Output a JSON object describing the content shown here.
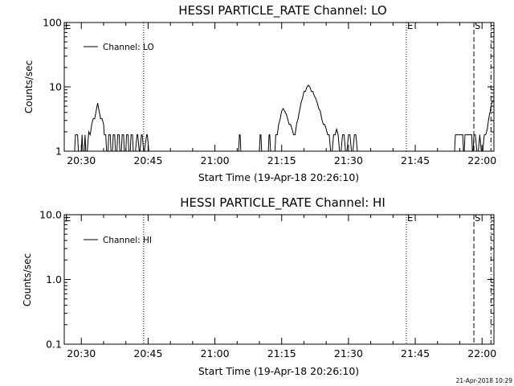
{
  "footer_stamp": "21-Apr-2018 10:29",
  "chart_data": [
    {
      "type": "line",
      "title": "HESSI PARTICLE_RATE Channel: LO",
      "xlabel": "Start Time (19-Apr-18 20:26:10)",
      "ylabel": "Counts/sec",
      "yscale": "log",
      "xlim": [
        "20:26:10",
        "22:02:40"
      ],
      "ylim": [
        1,
        100
      ],
      "x_ticks": [
        "20:30",
        "20:45",
        "21:00",
        "21:15",
        "21:30",
        "21:45",
        "22:00"
      ],
      "y_ticks": [
        "1",
        "10",
        "100"
      ],
      "legend": {
        "label": "Channel: LO",
        "placement": "top-left"
      },
      "markers": [
        {
          "time": "20:26:10",
          "label": "E",
          "style": "none"
        },
        {
          "time": "20:44:00",
          "label": "",
          "style": "dotted"
        },
        {
          "time": "21:43:00",
          "label": "E",
          "style": "dotted"
        },
        {
          "time": "21:58:10",
          "label": "S",
          "style": "dashed"
        },
        {
          "time": "22:02:00",
          "label": "",
          "style": "dash-dot"
        }
      ],
      "series": [
        {
          "name": "Channel: LO",
          "x": [
            "20:28:30",
            "20:28:40",
            "20:29:10",
            "20:29:20",
            "20:30:00",
            "20:30:10",
            "20:30:20",
            "20:30:40",
            "20:30:50",
            "20:31:00",
            "20:31:20",
            "20:31:40",
            "20:32:00",
            "20:32:20",
            "20:32:40",
            "20:33:00",
            "20:33:20",
            "20:33:40",
            "20:34:00",
            "20:34:20",
            "20:34:40",
            "20:35:00",
            "20:35:10",
            "20:35:30",
            "20:35:40",
            "20:36:00",
            "20:36:10",
            "20:36:30",
            "20:36:40",
            "20:37:00",
            "20:37:10",
            "20:37:30",
            "20:37:40",
            "20:38:00",
            "20:38:10",
            "20:38:30",
            "20:38:40",
            "20:39:00",
            "20:39:10",
            "20:39:30",
            "20:39:40",
            "20:40:00",
            "20:40:10",
            "20:40:30",
            "20:40:40",
            "20:41:00",
            "20:41:10",
            "20:41:30",
            "20:41:40",
            "20:42:10",
            "20:42:30",
            "20:42:40",
            "20:43:00",
            "20:43:10",
            "20:43:30",
            "20:43:40",
            "20:44:00",
            "20:44:10",
            "20:44:40",
            "20:44:50",
            "20:45:10",
            "20:45:20",
            "20:46:20",
            "21:05:20",
            "21:05:30",
            "21:05:40",
            "21:05:50",
            "21:10:00",
            "21:10:10",
            "21:10:20",
            "21:10:30",
            "21:12:00",
            "21:12:10",
            "21:12:20",
            "21:12:30",
            "21:13:30",
            "21:13:40",
            "21:14:00",
            "21:14:20",
            "21:14:40",
            "21:15:00",
            "21:15:20",
            "21:15:40",
            "21:16:00",
            "21:16:20",
            "21:16:40",
            "21:17:00",
            "21:17:20",
            "21:17:40",
            "21:18:00",
            "21:18:20",
            "21:18:40",
            "21:19:00",
            "21:19:20",
            "21:19:40",
            "21:20:00",
            "21:20:20",
            "21:20:40",
            "21:21:00",
            "21:21:20",
            "21:21:40",
            "21:22:00",
            "21:22:20",
            "21:22:40",
            "21:23:00",
            "21:23:20",
            "21:23:40",
            "21:24:00",
            "21:24:20",
            "21:24:40",
            "21:25:00",
            "21:25:20",
            "21:25:40",
            "21:26:00",
            "21:26:20",
            "21:26:40",
            "21:27:00",
            "21:27:20",
            "21:27:40",
            "21:28:00",
            "21:28:20",
            "21:28:40",
            "21:29:00",
            "21:29:20",
            "21:29:40",
            "21:30:00",
            "21:30:20",
            "21:30:40",
            "21:31:00",
            "21:31:20",
            "21:31:40",
            "21:32:00",
            "21:32:20",
            "21:32:40",
            "21:33:00",
            "21:33:20",
            "21:33:40",
            "21:34:00",
            "21:34:20",
            "21:34:40",
            "21:35:00",
            "21:35:20",
            "21:35:40",
            "21:36:00",
            "21:36:20",
            "21:36:40",
            "21:37:00",
            "21:37:20",
            "21:37:40",
            "21:38:00",
            "21:53:30",
            "21:53:40",
            "21:53:50",
            "21:54:00",
            "21:55:40",
            "21:55:50",
            "21:56:00",
            "21:56:10",
            "21:57:40",
            "21:57:50",
            "21:58:00",
            "21:58:10",
            "21:58:30",
            "21:58:50",
            "21:59:10",
            "21:59:30",
            "21:59:50",
            "22:00:10",
            "22:00:30",
            "22:00:50",
            "22:01:10",
            "22:01:30",
            "22:01:50",
            "22:02:10",
            "22:02:40"
          ],
          "y": [
            1,
            1.8,
            1.8,
            1,
            1,
            1.8,
            1,
            1,
            1.8,
            1,
            1,
            2,
            1.8,
            2.6,
            3.2,
            3.2,
            4.2,
            5.6,
            4.2,
            3.2,
            3.2,
            2.6,
            1.8,
            1.8,
            1,
            1,
            1.8,
            1.8,
            1,
            1,
            1.8,
            1.8,
            1,
            1,
            1.8,
            1.8,
            1,
            1,
            1.8,
            1.8,
            1,
            1,
            1.8,
            1.8,
            1,
            1,
            1.8,
            1.8,
            1,
            1,
            1.8,
            1.8,
            1,
            1,
            1.8,
            1.8,
            1,
            1,
            1.8,
            1.8,
            1,
            1,
            1,
            1,
            1.8,
            1.8,
            1,
            1,
            1.8,
            1.8,
            1,
            1,
            1.8,
            1.8,
            1,
            1,
            1.8,
            1.8,
            2.6,
            3.2,
            4.2,
            4.6,
            4.2,
            3.8,
            3.2,
            2.6,
            2.6,
            2.2,
            1.8,
            1.8,
            2.6,
            3.2,
            4.2,
            5.6,
            6.6,
            8.5,
            8.5,
            10,
            10.6,
            10,
            8.5,
            8.5,
            7.2,
            6.6,
            5.6,
            4.6,
            4.2,
            3.2,
            2.6,
            2.6,
            2.2,
            1.8,
            1.8,
            1,
            1,
            1.8,
            1.8,
            2.2,
            1.8,
            1,
            1,
            1.8,
            1.8,
            1,
            1,
            1.8,
            1.8,
            1,
            1,
            1.8,
            1.8,
            1,
            1,
            1,
            1,
            1,
            1,
            1,
            1,
            1,
            1,
            1,
            1,
            1,
            1,
            1,
            1,
            1,
            1,
            1,
            1,
            1,
            1,
            1.8,
            1.8,
            1,
            1,
            1.8,
            1.8,
            1,
            1,
            1.8,
            1.8,
            1,
            1,
            1.8,
            1,
            1,
            1.8,
            1.8,
            2.2,
            3.2,
            4.2,
            5.6,
            6.2
          ]
        }
      ]
    },
    {
      "type": "line",
      "title": "HESSI PARTICLE_RATE Channel: HI",
      "xlabel": "Start Time (19-Apr-18 20:26:10)",
      "ylabel": "Counts/sec",
      "yscale": "log",
      "xlim": [
        "20:26:10",
        "22:02:40"
      ],
      "ylim": [
        0.1,
        10
      ],
      "x_ticks": [
        "20:30",
        "20:45",
        "21:00",
        "21:15",
        "21:30",
        "21:45",
        "22:00"
      ],
      "y_ticks": [
        "0.1",
        "1.0",
        "10.0"
      ],
      "legend": {
        "label": "Channel: HI",
        "placement": "top-left"
      },
      "markers": [
        {
          "time": "20:26:10",
          "label": "E",
          "style": "none"
        },
        {
          "time": "20:44:00",
          "label": "",
          "style": "dotted"
        },
        {
          "time": "21:43:00",
          "label": "E",
          "style": "dotted"
        },
        {
          "time": "21:58:10",
          "label": "S",
          "style": "dashed"
        },
        {
          "time": "22:02:00",
          "label": "",
          "style": "dash-dot"
        }
      ],
      "series": [
        {
          "name": "Channel: HI",
          "x": [],
          "y": []
        }
      ]
    }
  ]
}
